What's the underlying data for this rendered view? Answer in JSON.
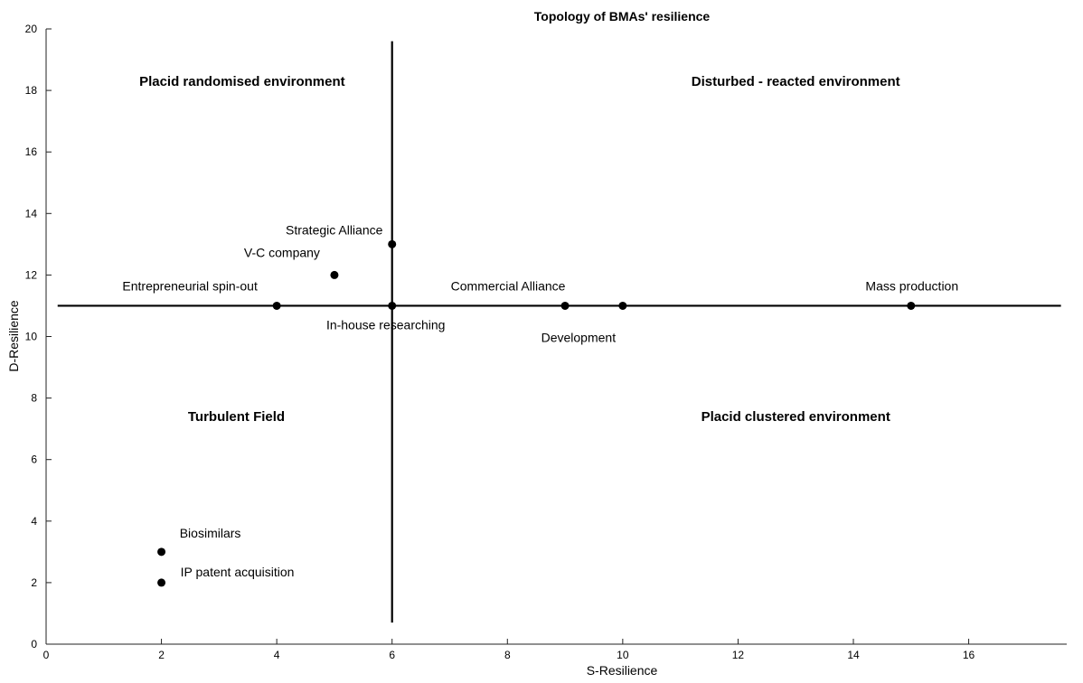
{
  "chart_data": {
    "type": "scatter",
    "title": "Topology of BMAs' resilience",
    "xlabel": "S-Resilience",
    "ylabel": "D-Resilience",
    "xlim": [
      0,
      17.7
    ],
    "ylim": [
      0,
      20
    ],
    "xticks": [
      0,
      2,
      4,
      6,
      8,
      10,
      12,
      14,
      16
    ],
    "yticks": [
      0,
      2,
      4,
      6,
      8,
      10,
      12,
      14,
      16,
      18,
      20
    ],
    "grid": false,
    "legend": "none",
    "points": [
      {
        "label": "Strategic Alliance",
        "x": 6,
        "y": 13
      },
      {
        "label": "V-C company",
        "x": 5,
        "y": 12
      },
      {
        "label": "Entrepreneurial spin-out",
        "x": 4,
        "y": 11
      },
      {
        "label": "In-house researching",
        "x": 6,
        "y": 11
      },
      {
        "label": "Commercial Alliance",
        "x": 9,
        "y": 11
      },
      {
        "label": "Development",
        "x": 10,
        "y": 11
      },
      {
        "label": "Mass production",
        "x": 15,
        "y": 11
      },
      {
        "label": "Biosimilars",
        "x": 2,
        "y": 3
      },
      {
        "label": "IP patent acquisition",
        "x": 2,
        "y": 2
      }
    ],
    "dividers": [
      {
        "orientation": "horizontal",
        "y": 11,
        "x_from": 0.2,
        "x_to": 17.6
      },
      {
        "orientation": "vertical",
        "x": 6,
        "y_from": 0.7,
        "y_to": 19.6
      }
    ],
    "regions": [
      {
        "label": "Placid randomised environment",
        "x": 3.4,
        "y": 18.3
      },
      {
        "label": "Disturbed - reacted environment",
        "x": 13.0,
        "y": 18.3
      },
      {
        "label": "Turbulent Field",
        "x": 3.3,
        "y": 7.4
      },
      {
        "label": "Placid clustered environment",
        "x": 13.0,
        "y": 7.4
      }
    ],
    "colors": {
      "marks": "#000000",
      "background": "#ffffff"
    }
  }
}
